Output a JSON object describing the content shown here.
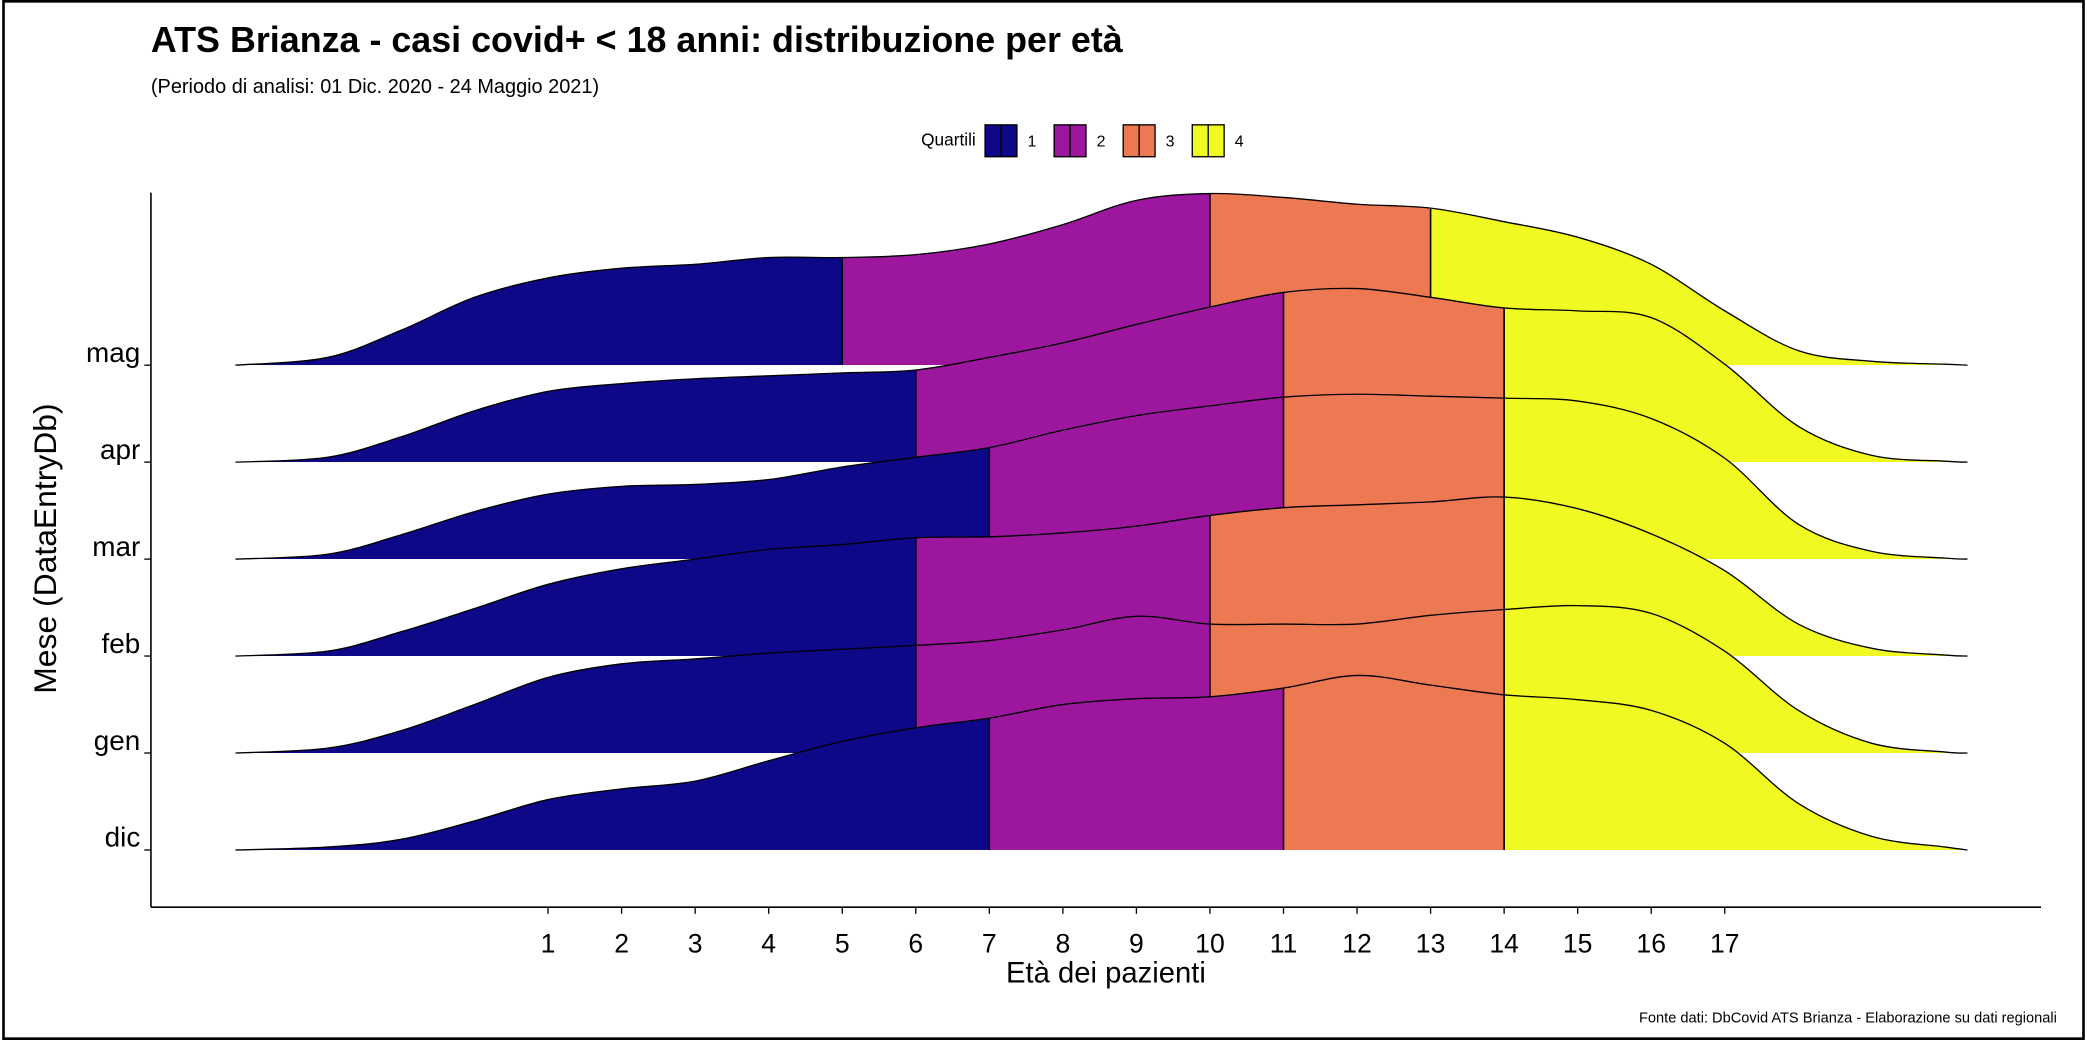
{
  "chart_data": {
    "type": "ridgeline",
    "title": "ATS Brianza - casi covid+ < 18 anni: distribuzione per età",
    "subtitle": "(Periodo di analisi: 01 Dic. 2020 - 24 Maggio 2021)",
    "x_label": "Età dei pazienti",
    "y_label": "Mese (DataEntryDb)",
    "caption": "Fonte dati: DbCovid ATS Brianza - Elaborazione su dati regionali",
    "legend": {
      "title": "Quartili",
      "labels": [
        "1",
        "2",
        "3",
        "4"
      ],
      "colors": [
        "#0d0887",
        "#9c179e",
        "#ed7953",
        "#f0f921"
      ]
    },
    "xlim": [
      -4.4,
      21.3
    ],
    "xticks": [
      1,
      2,
      3,
      4,
      5,
      6,
      7,
      8,
      9,
      10,
      11,
      12,
      13,
      14,
      15,
      16,
      17
    ],
    "ylim": [
      -0.59,
      6.78
    ],
    "x": [
      -3.25,
      -2,
      -1,
      0,
      1,
      2,
      3,
      4,
      5,
      6,
      7,
      8,
      9,
      10,
      11,
      12,
      13,
      14,
      15,
      16,
      17,
      18,
      19,
      20,
      20.3
    ],
    "series": [
      {
        "name": "dic",
        "quartile_breaks": [
          7,
          11,
          14
        ],
        "values": [
          0,
          0.03,
          0.11,
          0.3,
          0.52,
          0.63,
          0.71,
          0.92,
          1.12,
          1.26,
          1.36,
          1.5,
          1.56,
          1.58,
          1.67,
          1.8,
          1.7,
          1.6,
          1.55,
          1.44,
          1.1,
          0.48,
          0.14,
          0.03,
          0
        ]
      },
      {
        "name": "gen",
        "quartile_breaks": [
          6,
          10,
          14
        ],
        "values": [
          0,
          0.05,
          0.23,
          0.5,
          0.78,
          0.92,
          0.97,
          1.03,
          1.07,
          1.11,
          1.16,
          1.27,
          1.41,
          1.33,
          1.33,
          1.33,
          1.42,
          1.48,
          1.52,
          1.44,
          1.05,
          0.44,
          0.1,
          0.01,
          0
        ]
      },
      {
        "name": "feb",
        "quartile_breaks": [
          6,
          10,
          14
        ],
        "values": [
          0,
          0.05,
          0.25,
          0.49,
          0.74,
          0.9,
          1.0,
          1.1,
          1.15,
          1.22,
          1.23,
          1.27,
          1.34,
          1.45,
          1.53,
          1.56,
          1.59,
          1.64,
          1.52,
          1.26,
          0.88,
          0.33,
          0.08,
          0.01,
          0
        ]
      },
      {
        "name": "mar",
        "quartile_breaks": [
          7,
          11,
          14
        ],
        "values": [
          0,
          0.05,
          0.25,
          0.49,
          0.67,
          0.75,
          0.77,
          0.82,
          0.95,
          1.05,
          1.15,
          1.33,
          1.48,
          1.58,
          1.67,
          1.7,
          1.68,
          1.66,
          1.63,
          1.45,
          1.04,
          0.36,
          0.08,
          0.01,
          0
        ]
      },
      {
        "name": "apr",
        "quartile_breaks": [
          6,
          11,
          14
        ],
        "values": [
          0,
          0.05,
          0.26,
          0.53,
          0.73,
          0.81,
          0.86,
          0.89,
          0.92,
          0.95,
          1.08,
          1.23,
          1.42,
          1.6,
          1.75,
          1.79,
          1.7,
          1.59,
          1.56,
          1.49,
          1.01,
          0.37,
          0.07,
          0.01,
          0
        ]
      },
      {
        "name": "mag",
        "quartile_breaks": [
          5,
          10,
          13
        ],
        "values": [
          0,
          0.08,
          0.36,
          0.7,
          0.9,
          1.0,
          1.04,
          1.11,
          1.11,
          1.14,
          1.25,
          1.45,
          1.7,
          1.77,
          1.73,
          1.66,
          1.62,
          1.48,
          1.32,
          1.04,
          0.56,
          0.15,
          0.04,
          0.01,
          0
        ]
      }
    ]
  }
}
